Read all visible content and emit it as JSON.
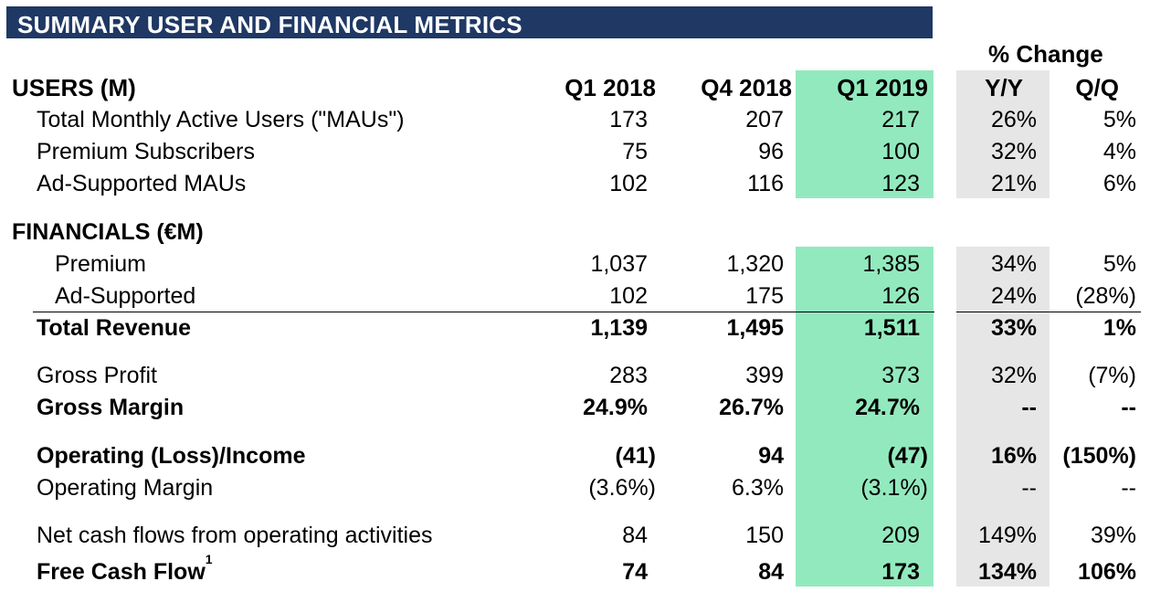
{
  "title": "SUMMARY USER AND FINANCIAL METRICS",
  "colors": {
    "title_bg": "#1f3864",
    "highlight": "#93e9be",
    "change_bg": "#e6e6e6"
  },
  "pct_change_header": "% Change",
  "headers": {
    "users_section": "USERS (M)",
    "q1_2018": "Q1 2018",
    "q4_2018": "Q4 2018",
    "q1_2019": "Q1 2019",
    "yy": "Y/Y",
    "qq": "Q/Q"
  },
  "financials_section": "FINANCIALS (€M)",
  "rows": [
    {
      "label": "Total Monthly Active Users (\"MAUs\")",
      "q1_2018": "173",
      "q4_2018": "207",
      "q1_2019": "217",
      "yy": "26%",
      "qq": "5%"
    },
    {
      "label": "Premium Subscribers",
      "q1_2018": "75",
      "q4_2018": "96",
      "q1_2019": "100",
      "yy": "32%",
      "qq": "4%"
    },
    {
      "label": "Ad-Supported MAUs",
      "q1_2018": "102",
      "q4_2018": "116",
      "q1_2019": "123",
      "yy": "21%",
      "qq": "6%"
    },
    {
      "label": "Premium",
      "q1_2018": "1,037",
      "q4_2018": "1,320",
      "q1_2019": "1,385",
      "yy": "34%",
      "qq": "5%"
    },
    {
      "label": "Ad-Supported",
      "q1_2018": "102",
      "q4_2018": "175",
      "q1_2019": "126",
      "yy": "24%",
      "qq": "(28%)"
    },
    {
      "label": "Total Revenue",
      "q1_2018": "1,139",
      "q4_2018": "1,495",
      "q1_2019": "1,511",
      "yy": "33%",
      "qq": "1%"
    },
    {
      "label": "Gross Profit",
      "q1_2018": "283",
      "q4_2018": "399",
      "q1_2019": "373",
      "yy": "32%",
      "qq": "(7%)"
    },
    {
      "label": "Gross Margin",
      "q1_2018": "24.9%",
      "q4_2018": "26.7%",
      "q1_2019": "24.7%",
      "yy": "--",
      "qq": "--"
    },
    {
      "label": "Operating (Loss)/Income",
      "q1_2018": "(41)",
      "q4_2018": "94",
      "q1_2019": "(47)",
      "yy": "16%",
      "qq": "(150%)"
    },
    {
      "label": "Operating Margin",
      "q1_2018": "(3.6%)",
      "q4_2018": "6.3%",
      "q1_2019": "(3.1%)",
      "yy": "--",
      "qq": "--"
    },
    {
      "label": "Net cash flows from operating activities",
      "q1_2018": "84",
      "q4_2018": "150",
      "q1_2019": "209",
      "yy": "149%",
      "qq": "39%"
    },
    {
      "label": "Free Cash Flow",
      "footnote": "1",
      "q1_2018": "74",
      "q4_2018": "84",
      "q1_2019": "173",
      "yy": "134%",
      "qq": "106%"
    }
  ]
}
